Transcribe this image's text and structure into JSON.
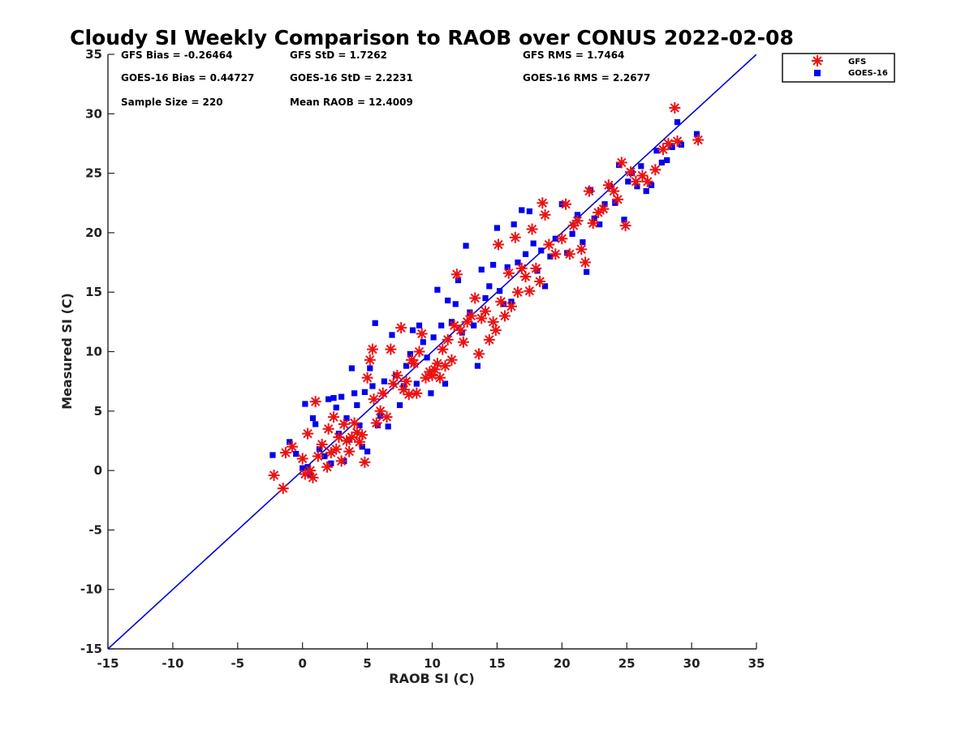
{
  "chart_data": {
    "type": "scatter",
    "title": "Cloudy SI Weekly Comparison to RAOB over CONUS 2022-02-08",
    "xlabel": "RAOB SI (C)",
    "ylabel": "Measured SI (C)",
    "xlim": [
      -15,
      35
    ],
    "ylim": [
      -15,
      35
    ],
    "xticks": [
      -15,
      -10,
      -5,
      0,
      5,
      10,
      15,
      20,
      25,
      30,
      35
    ],
    "yticks": [
      -15,
      -10,
      -5,
      0,
      5,
      10,
      15,
      20,
      25,
      30,
      35
    ],
    "grid": false,
    "legend_position": "outside-top-right",
    "reference_line": {
      "from": [
        -15,
        -15
      ],
      "to": [
        35,
        35
      ],
      "color": "#0000dd"
    },
    "stats": [
      "GFS Bias = -0.26464",
      "GFS StD = 1.7262",
      "GFS RMS = 1.7464",
      "GOES-16 Bias = 0.44727",
      "GOES-16 StD = 2.2231",
      "GOES-16 RMS = 2.2677",
      "Sample Size = 220",
      "Mean RAOB = 12.4009"
    ],
    "series": [
      {
        "name": "GFS",
        "marker": "asterisk",
        "color": "#ee1111",
        "points": [
          [
            -2.2,
            -0.4
          ],
          [
            -1.5,
            -1.5
          ],
          [
            -1.3,
            1.5
          ],
          [
            -0.8,
            2.0
          ],
          [
            0.0,
            1.0
          ],
          [
            0.2,
            -0.3
          ],
          [
            0.4,
            3.1
          ],
          [
            0.6,
            0.0
          ],
          [
            0.8,
            -0.6
          ],
          [
            1.0,
            5.8
          ],
          [
            1.2,
            1.2
          ],
          [
            1.5,
            2.2
          ],
          [
            1.9,
            0.3
          ],
          [
            2.0,
            3.5
          ],
          [
            2.2,
            1.5
          ],
          [
            2.4,
            4.5
          ],
          [
            2.6,
            1.8
          ],
          [
            2.8,
            2.8
          ],
          [
            3.0,
            0.8
          ],
          [
            3.2,
            3.9
          ],
          [
            3.4,
            2.5
          ],
          [
            3.6,
            1.6
          ],
          [
            3.8,
            2.8
          ],
          [
            4.0,
            4.0
          ],
          [
            4.2,
            3.2
          ],
          [
            4.4,
            2.4
          ],
          [
            4.6,
            3.0
          ],
          [
            4.8,
            0.7
          ],
          [
            5.0,
            7.8
          ],
          [
            5.2,
            9.3
          ],
          [
            5.4,
            10.2
          ],
          [
            5.5,
            6.0
          ],
          [
            5.7,
            4.0
          ],
          [
            6.0,
            5.0
          ],
          [
            6.2,
            6.5
          ],
          [
            6.5,
            4.5
          ],
          [
            6.8,
            10.2
          ],
          [
            7.0,
            7.3
          ],
          [
            7.3,
            8.0
          ],
          [
            7.6,
            12.0
          ],
          [
            7.8,
            6.8
          ],
          [
            8.0,
            7.5
          ],
          [
            8.2,
            6.4
          ],
          [
            8.4,
            9.3
          ],
          [
            8.6,
            9.0
          ],
          [
            8.8,
            6.5
          ],
          [
            9.0,
            10.0
          ],
          [
            9.2,
            11.5
          ],
          [
            9.5,
            7.8
          ],
          [
            9.8,
            8.3
          ],
          [
            10.0,
            8.0
          ],
          [
            10.2,
            8.5
          ],
          [
            10.4,
            9.0
          ],
          [
            10.6,
            7.8
          ],
          [
            10.8,
            10.2
          ],
          [
            11.0,
            8.8
          ],
          [
            11.2,
            11.0
          ],
          [
            11.5,
            9.3
          ],
          [
            11.7,
            12.2
          ],
          [
            11.9,
            16.5
          ],
          [
            12.2,
            11.8
          ],
          [
            12.4,
            10.8
          ],
          [
            12.7,
            12.5
          ],
          [
            13.0,
            13.0
          ],
          [
            13.3,
            14.5
          ],
          [
            13.6,
            9.8
          ],
          [
            13.8,
            12.8
          ],
          [
            14.1,
            13.4
          ],
          [
            14.4,
            11.0
          ],
          [
            14.7,
            12.5
          ],
          [
            14.9,
            11.8
          ],
          [
            15.1,
            19.0
          ],
          [
            15.3,
            14.2
          ],
          [
            15.6,
            13.0
          ],
          [
            15.9,
            16.6
          ],
          [
            16.1,
            13.8
          ],
          [
            16.4,
            19.6
          ],
          [
            16.6,
            15.0
          ],
          [
            16.9,
            17.0
          ],
          [
            17.2,
            16.3
          ],
          [
            17.5,
            15.1
          ],
          [
            17.7,
            20.3
          ],
          [
            18.0,
            17.0
          ],
          [
            18.3,
            15.9
          ],
          [
            18.5,
            22.5
          ],
          [
            18.7,
            21.5
          ],
          [
            19.0,
            19.0
          ],
          [
            19.5,
            18.2
          ],
          [
            20.0,
            19.5
          ],
          [
            20.3,
            22.4
          ],
          [
            20.6,
            18.2
          ],
          [
            20.9,
            20.6
          ],
          [
            21.2,
            21.0
          ],
          [
            21.5,
            18.6
          ],
          [
            21.8,
            17.5
          ],
          [
            22.1,
            23.5
          ],
          [
            22.4,
            20.8
          ],
          [
            22.8,
            21.7
          ],
          [
            23.2,
            22.0
          ],
          [
            23.6,
            24.0
          ],
          [
            24.0,
            23.5
          ],
          [
            24.3,
            22.8
          ],
          [
            24.6,
            25.9
          ],
          [
            24.9,
            20.6
          ],
          [
            25.3,
            25.1
          ],
          [
            25.7,
            24.3
          ],
          [
            26.2,
            24.8
          ],
          [
            26.6,
            24.3
          ],
          [
            27.2,
            25.3
          ],
          [
            27.8,
            27.0
          ],
          [
            28.2,
            27.5
          ],
          [
            28.7,
            30.5
          ],
          [
            28.9,
            27.7
          ],
          [
            30.5,
            27.8
          ]
        ]
      },
      {
        "name": "GOES-16",
        "marker": "square",
        "color": "#0000ee",
        "points": [
          [
            -2.3,
            1.3
          ],
          [
            -1.0,
            2.4
          ],
          [
            -0.5,
            1.4
          ],
          [
            0.0,
            0.2
          ],
          [
            0.2,
            5.6
          ],
          [
            0.4,
            0.3
          ],
          [
            0.6,
            -0.4
          ],
          [
            0.8,
            4.4
          ],
          [
            1.0,
            3.9
          ],
          [
            1.3,
            1.8
          ],
          [
            1.7,
            1.2
          ],
          [
            2.0,
            6.0
          ],
          [
            2.2,
            0.6
          ],
          [
            2.4,
            6.1
          ],
          [
            2.6,
            5.3
          ],
          [
            2.8,
            3.1
          ],
          [
            3.0,
            6.2
          ],
          [
            3.2,
            0.8
          ],
          [
            3.4,
            4.4
          ],
          [
            3.6,
            2.6
          ],
          [
            3.8,
            8.6
          ],
          [
            4.0,
            6.5
          ],
          [
            4.2,
            5.5
          ],
          [
            4.4,
            3.8
          ],
          [
            4.6,
            2.0
          ],
          [
            4.8,
            6.6
          ],
          [
            5.0,
            1.6
          ],
          [
            5.2,
            8.6
          ],
          [
            5.4,
            7.1
          ],
          [
            5.6,
            12.4
          ],
          [
            5.8,
            3.8
          ],
          [
            6.0,
            4.6
          ],
          [
            6.3,
            7.5
          ],
          [
            6.6,
            3.7
          ],
          [
            6.9,
            11.4
          ],
          [
            7.2,
            8.0
          ],
          [
            7.5,
            5.5
          ],
          [
            7.8,
            7.1
          ],
          [
            8.0,
            8.8
          ],
          [
            8.3,
            9.8
          ],
          [
            8.5,
            11.8
          ],
          [
            8.8,
            7.3
          ],
          [
            9.0,
            12.2
          ],
          [
            9.3,
            10.8
          ],
          [
            9.6,
            9.5
          ],
          [
            9.9,
            6.5
          ],
          [
            10.1,
            11.2
          ],
          [
            10.4,
            15.2
          ],
          [
            10.7,
            12.2
          ],
          [
            11.0,
            7.3
          ],
          [
            11.2,
            14.3
          ],
          [
            11.5,
            12.5
          ],
          [
            11.8,
            14.0
          ],
          [
            12.0,
            16.0
          ],
          [
            12.3,
            11.6
          ],
          [
            12.6,
            18.9
          ],
          [
            12.9,
            13.3
          ],
          [
            13.2,
            12.2
          ],
          [
            13.5,
            8.8
          ],
          [
            13.8,
            16.9
          ],
          [
            14.1,
            14.5
          ],
          [
            14.4,
            15.5
          ],
          [
            14.7,
            17.3
          ],
          [
            15.0,
            20.4
          ],
          [
            15.2,
            15.1
          ],
          [
            15.5,
            14.0
          ],
          [
            15.8,
            17.1
          ],
          [
            16.1,
            14.2
          ],
          [
            16.3,
            20.7
          ],
          [
            16.6,
            17.5
          ],
          [
            16.9,
            21.9
          ],
          [
            17.2,
            18.2
          ],
          [
            17.5,
            21.8
          ],
          [
            17.8,
            19.1
          ],
          [
            18.1,
            16.8
          ],
          [
            18.4,
            18.5
          ],
          [
            18.7,
            15.5
          ],
          [
            19.1,
            18.0
          ],
          [
            19.5,
            19.5
          ],
          [
            20.0,
            22.4
          ],
          [
            20.4,
            18.3
          ],
          [
            20.8,
            19.9
          ],
          [
            21.2,
            21.5
          ],
          [
            21.6,
            19.2
          ],
          [
            21.9,
            16.7
          ],
          [
            22.2,
            23.6
          ],
          [
            22.5,
            21.2
          ],
          [
            22.9,
            20.7
          ],
          [
            23.3,
            22.4
          ],
          [
            23.7,
            23.9
          ],
          [
            24.1,
            22.5
          ],
          [
            24.4,
            25.7
          ],
          [
            24.8,
            21.1
          ],
          [
            25.1,
            24.3
          ],
          [
            25.4,
            25.0
          ],
          [
            25.8,
            23.9
          ],
          [
            26.1,
            25.6
          ],
          [
            26.5,
            23.5
          ],
          [
            26.9,
            24.0
          ],
          [
            27.3,
            26.9
          ],
          [
            27.7,
            25.9
          ],
          [
            28.1,
            26.1
          ],
          [
            28.5,
            27.2
          ],
          [
            28.9,
            29.3
          ],
          [
            29.2,
            27.4
          ],
          [
            30.4,
            28.3
          ]
        ]
      }
    ]
  }
}
